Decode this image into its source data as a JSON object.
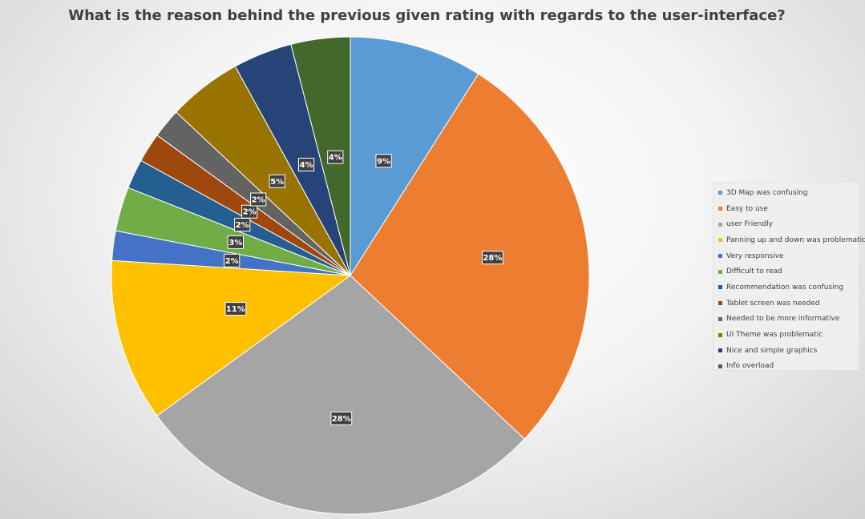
{
  "chart_data": {
    "type": "pie",
    "title": "What is the reason behind the previous given rating with regards to the user-interface?",
    "legend_position": "right",
    "start_angle": "12 o'clock, clockwise",
    "slices": [
      {
        "label": "3D Map was confusing",
        "value": 9,
        "display": "9%",
        "color": "#5B9BD5"
      },
      {
        "label": "Easy to use",
        "value": 28,
        "display": "28%",
        "color": "#ED7D31"
      },
      {
        "label": "user Friendly",
        "value": 28,
        "display": "28%",
        "color": "#A5A5A5"
      },
      {
        "label": "Panning up and down was problematic",
        "value": 11,
        "display": "11%",
        "color": "#FFC000"
      },
      {
        "label": "Very responsive",
        "value": 2,
        "display": "2%",
        "color": "#4472C4"
      },
      {
        "label": "Difficult to read",
        "value": 3,
        "display": "3%",
        "color": "#70AD47"
      },
      {
        "label": "Recommendation was confusing",
        "value": 2,
        "display": "2%",
        "color": "#255E91"
      },
      {
        "label": "Tablet screen was needed",
        "value": 2,
        "display": "2%",
        "color": "#9E480E"
      },
      {
        "label": "Needed to be more informative",
        "value": 2,
        "display": "2%",
        "color": "#636363"
      },
      {
        "label": "UI Theme was problematic",
        "value": 5,
        "display": "5%",
        "color": "#997300"
      },
      {
        "label": "Nice and simple graphics",
        "value": 4,
        "display": "4%",
        "color": "#264478"
      },
      {
        "label": "Info overload",
        "value": 4,
        "display": "4%",
        "color": "#43682B"
      }
    ]
  }
}
